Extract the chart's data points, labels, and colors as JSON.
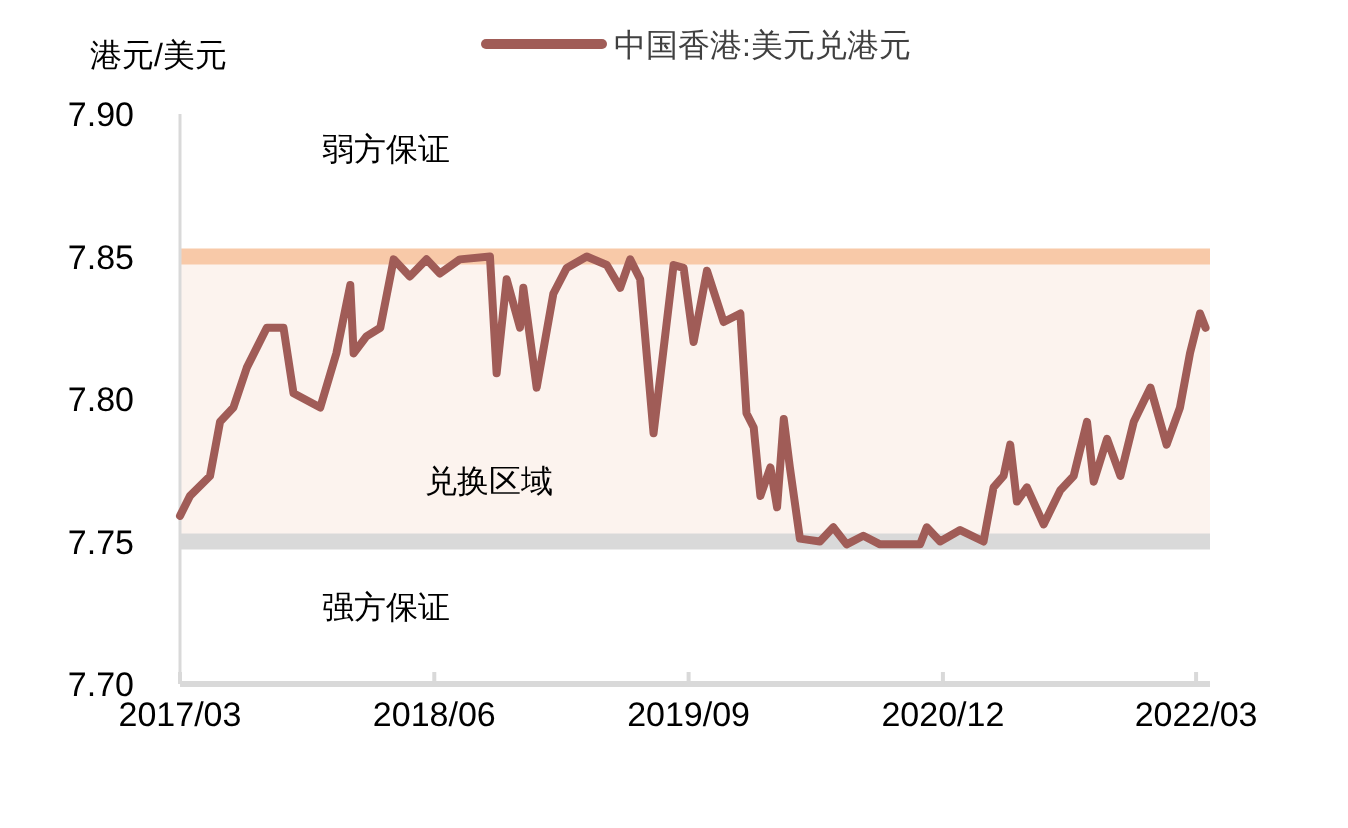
{
  "chart_data": {
    "type": "line",
    "ylabel": "港元/美元",
    "legend": "top",
    "grid": false,
    "series": [
      {
        "name": "中国香港:美元兑港元",
        "color": "#a05c57",
        "x": [
          "2017-03-01",
          "2017-03-19",
          "2017-04-24",
          "2017-05-12",
          "2017-06-05",
          "2017-06-29",
          "2017-08-04",
          "2017-09-03",
          "2017-09-21",
          "2017-11-08",
          "2017-12-07",
          "2018-01-01",
          "2018-01-07",
          "2018-01-30",
          "2018-02-24",
          "2018-03-20",
          "2018-04-18",
          "2018-05-18",
          "2018-06-11",
          "2018-07-17",
          "2018-09-09",
          "2018-09-21",
          "2018-10-09",
          "2018-11-02",
          "2018-11-08",
          "2018-12-02",
          "2019-01-01",
          "2019-01-25",
          "2019-03-02",
          "2019-04-07",
          "2019-05-01",
          "2019-05-19",
          "2019-06-06",
          "2019-06-30",
          "2019-08-05",
          "2019-08-23",
          "2019-09-10",
          "2019-10-04",
          "2019-11-03",
          "2019-12-03",
          "2019-12-14",
          "2019-12-27",
          "2020-01-08",
          "2020-01-26",
          "2020-02-07",
          "2020-02-19",
          "2020-03-01",
          "2020-03-19",
          "2020-04-24",
          "2020-05-18",
          "2020-06-11",
          "2020-07-11",
          "2020-08-10",
          "2020-10-21",
          "2020-11-02",
          "2020-11-26",
          "2021-01-01",
          "2021-02-12",
          "2021-03-02",
          "2021-03-20",
          "2021-04-01",
          "2021-04-13",
          "2021-05-01",
          "2021-05-31",
          "2021-06-30",
          "2021-07-24",
          "2021-08-17",
          "2021-08-29",
          "2021-09-22",
          "2021-10-16",
          "2021-11-09",
          "2021-12-09",
          "2022-01-07",
          "2022-01-31",
          "2022-02-18",
          "2022-03-08",
          "2022-03-18"
        ],
        "values": [
          7.759,
          7.766,
          7.773,
          7.792,
          7.797,
          7.811,
          7.825,
          7.825,
          7.802,
          7.797,
          7.816,
          7.84,
          7.816,
          7.822,
          7.825,
          7.849,
          7.843,
          7.849,
          7.844,
          7.849,
          7.85,
          7.809,
          7.842,
          7.825,
          7.839,
          7.804,
          7.837,
          7.846,
          7.85,
          7.847,
          7.839,
          7.849,
          7.842,
          7.788,
          7.847,
          7.846,
          7.82,
          7.845,
          7.827,
          7.83,
          7.795,
          7.79,
          7.766,
          7.776,
          7.762,
          7.793,
          7.776,
          7.751,
          7.75,
          7.755,
          7.749,
          7.752,
          7.749,
          7.749,
          7.755,
          7.75,
          7.754,
          7.75,
          7.769,
          7.773,
          7.784,
          7.764,
          7.769,
          7.756,
          7.768,
          7.773,
          7.792,
          7.771,
          7.786,
          7.773,
          7.792,
          7.804,
          7.784,
          7.797,
          7.816,
          7.83,
          7.825
        ]
      }
    ],
    "xlim": [
      "2017-03-01",
      "2022-03-26"
    ],
    "xticks": [
      {
        "value": "2017-03-01",
        "label": "2017/03"
      },
      {
        "value": "2018-06-01",
        "label": "2018/06"
      },
      {
        "value": "2019-09-01",
        "label": "2019/09"
      },
      {
        "value": "2020-12-01",
        "label": "2020/12"
      },
      {
        "value": "2022-03-01",
        "label": "2022/03"
      }
    ],
    "ylim": [
      7.7,
      7.9
    ],
    "yticks": [
      {
        "value": 7.7,
        "label": "7.70"
      },
      {
        "value": 7.75,
        "label": "7.75"
      },
      {
        "value": 7.8,
        "label": "7.80"
      },
      {
        "value": 7.85,
        "label": "7.85"
      },
      {
        "value": 7.9,
        "label": "7.90"
      }
    ],
    "ref_lines": [
      {
        "axis": "y",
        "value": 7.85,
        "label": "弱方保证",
        "color": "#f8c9a8"
      },
      {
        "axis": "y",
        "value": 7.75,
        "label": "强方保证",
        "color": "#d9d9d9"
      }
    ],
    "bands": [
      {
        "axis": "y",
        "from": 7.75,
        "to": 7.85,
        "label": "兑换区域",
        "color": "#fcf3ee"
      }
    ]
  }
}
